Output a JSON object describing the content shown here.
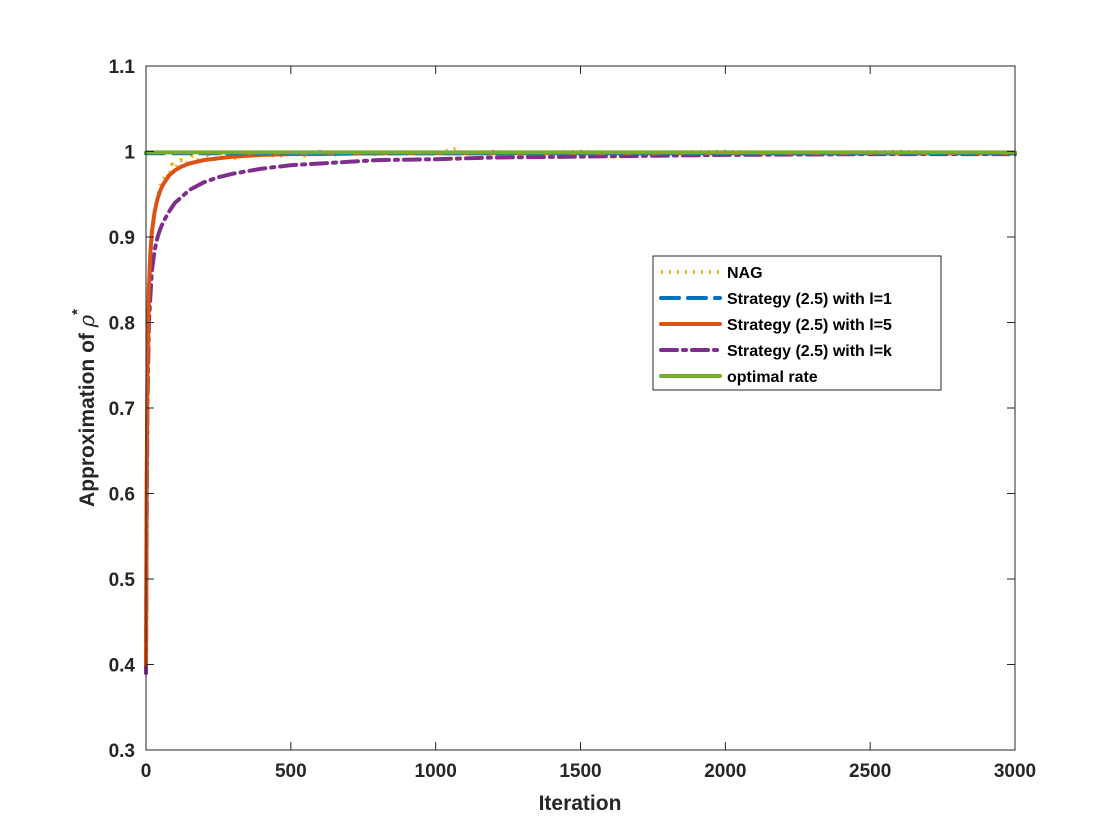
{
  "chart_data": {
    "type": "line",
    "xlabel": "Iteration",
    "ylabel": "Approximation of ",
    "ylabel_symbol": "ρ",
    "ylabel_superscript": "*",
    "xlim": [
      0,
      3000
    ],
    "ylim": [
      0.3,
      1.1
    ],
    "xticks": [
      0,
      500,
      1000,
      1500,
      2000,
      2500,
      3000
    ],
    "yticks": [
      0.3,
      0.4,
      0.5,
      0.6,
      0.7,
      0.8,
      0.9,
      1,
      1.1
    ],
    "grid": false,
    "legend_position": "center-right",
    "series": [
      {
        "name": "NAG",
        "color": "#EDB120",
        "style": "dotted",
        "x": [
          0,
          2,
          5,
          10,
          15,
          20,
          30,
          40,
          50,
          60,
          70,
          80,
          90,
          100,
          120,
          140,
          160,
          180,
          200,
          230,
          260,
          300,
          350,
          400,
          450,
          500,
          550,
          600,
          650,
          700,
          800,
          900,
          1000,
          1070,
          1100,
          1200,
          1300,
          1400,
          1500,
          1600,
          1800,
          2000,
          2200,
          2400,
          2600,
          2800,
          3000
        ],
        "y": [
          0.39,
          0.55,
          0.7,
          0.82,
          0.87,
          0.9,
          0.93,
          0.945,
          0.96,
          0.965,
          0.975,
          0.97,
          0.985,
          0.98,
          0.99,
          0.985,
          0.995,
          0.99,
          1.0,
          0.99,
          0.998,
          0.992,
          0.996,
          1.0,
          0.994,
          0.998,
          0.995,
          1.0,
          0.996,
          0.999,
          0.997,
          0.999,
          0.998,
          1.003,
          0.997,
          1.0,
          0.998,
          0.999,
          1.0,
          0.998,
          0.999,
          1.0,
          0.998,
          0.999,
          1.0,
          0.998,
          0.999
        ]
      },
      {
        "name": "Strategy (2.5) with l=1",
        "color": "#0072BD",
        "style": "dashed",
        "x": [
          0,
          3000
        ],
        "y": [
          0.998,
          0.998
        ]
      },
      {
        "name": "Strategy (2.5) with l=5",
        "color": "#D95319",
        "style": "solid",
        "x": [
          0,
          2,
          5,
          10,
          15,
          20,
          30,
          40,
          50,
          60,
          80,
          100,
          120,
          150,
          200,
          250,
          300,
          350,
          400,
          500,
          600,
          800,
          1000,
          1500,
          2000,
          2500,
          3000
        ],
        "y": [
          0.4,
          0.6,
          0.74,
          0.84,
          0.88,
          0.905,
          0.93,
          0.945,
          0.955,
          0.962,
          0.972,
          0.978,
          0.982,
          0.986,
          0.99,
          0.992,
          0.994,
          0.995,
          0.996,
          0.997,
          0.997,
          0.998,
          0.998,
          0.998,
          0.998,
          0.998,
          0.998
        ]
      },
      {
        "name": "Strategy (2.5) with l=k",
        "color": "#7E2F8E",
        "style": "dashdot",
        "x": [
          0,
          2,
          5,
          10,
          20,
          30,
          40,
          50,
          60,
          80,
          100,
          150,
          200,
          250,
          300,
          400,
          500,
          600,
          700,
          800,
          1000,
          1200,
          1500,
          2000,
          2500,
          3000
        ],
        "y": [
          0.39,
          0.55,
          0.7,
          0.8,
          0.86,
          0.885,
          0.9,
          0.91,
          0.918,
          0.93,
          0.94,
          0.955,
          0.964,
          0.97,
          0.974,
          0.98,
          0.984,
          0.986,
          0.988,
          0.99,
          0.991,
          0.993,
          0.994,
          0.996,
          0.997,
          0.997
        ]
      },
      {
        "name": "optimal rate",
        "color": "#77AC30",
        "style": "solid",
        "x": [
          0,
          3000
        ],
        "y": [
          0.999,
          0.999
        ]
      }
    ]
  }
}
